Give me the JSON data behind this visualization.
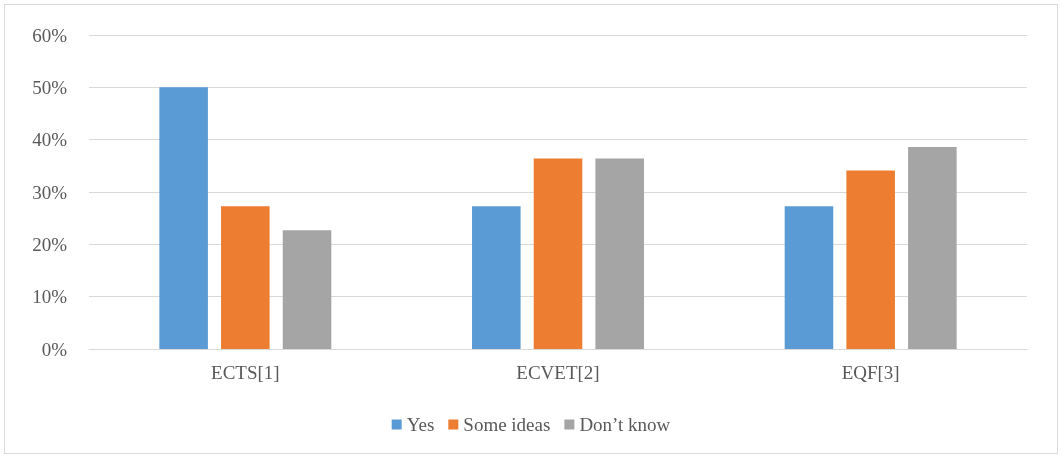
{
  "chart_data": {
    "type": "bar",
    "categories": [
      "ECTS[1]",
      "ECVET[2]",
      "EQF[3]"
    ],
    "series": [
      {
        "name": "Yes",
        "color": "#5b9bd5",
        "values": [
          50,
          27.3,
          27.3
        ]
      },
      {
        "name": "Some ideas",
        "color": "#ed7d31",
        "values": [
          27.3,
          36.4,
          34.1
        ]
      },
      {
        "name": "Don’t know",
        "color": "#a5a5a5",
        "values": [
          22.7,
          36.4,
          38.6
        ]
      }
    ],
    "ylim": [
      0,
      60
    ],
    "yticks": [
      {
        "value": 0,
        "label": "0%"
      },
      {
        "value": 10,
        "label": "10%"
      },
      {
        "value": 20,
        "label": "20%"
      },
      {
        "value": 30,
        "label": "30%"
      },
      {
        "value": 40,
        "label": "40%"
      },
      {
        "value": 50,
        "label": "50%"
      },
      {
        "value": 60,
        "label": "60%"
      }
    ],
    "grid": "y",
    "legend": "bottom"
  }
}
